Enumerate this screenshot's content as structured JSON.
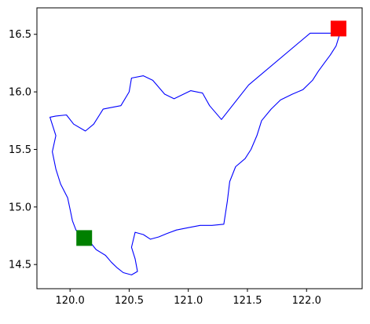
{
  "chart_data": {
    "type": "scatter",
    "title": "",
    "xlabel": "",
    "ylabel": "",
    "xlim": [
      119.72,
      122.47
    ],
    "ylim": [
      14.29,
      16.73
    ],
    "grid": false,
    "legend": null,
    "x_ticks": [
      120.0,
      120.5,
      121.0,
      121.5,
      122.0
    ],
    "x_tick_labels": [
      "120.0",
      "120.5",
      "121.0",
      "121.5",
      "122.0"
    ],
    "y_ticks": [
      14.5,
      15.0,
      15.5,
      16.0,
      16.5
    ],
    "y_tick_labels": [
      "14.5",
      "15.0",
      "15.5",
      "16.0",
      "16.5"
    ],
    "boundary": {
      "stroke": "#0000ff",
      "fill": "none",
      "points": [
        [
          122.28,
          16.6
        ],
        [
          122.23,
          16.51
        ],
        [
          122.03,
          16.51
        ],
        [
          121.51,
          16.06
        ],
        [
          121.28,
          15.76
        ],
        [
          121.18,
          15.88
        ],
        [
          121.12,
          15.99
        ],
        [
          121.02,
          16.01
        ],
        [
          120.88,
          15.94
        ],
        [
          120.8,
          15.98
        ],
        [
          120.7,
          16.1
        ],
        [
          120.62,
          16.14
        ],
        [
          120.52,
          16.12
        ],
        [
          120.5,
          16.0
        ],
        [
          120.43,
          15.88
        ],
        [
          120.33,
          15.86
        ],
        [
          120.28,
          15.85
        ],
        [
          120.2,
          15.72
        ],
        [
          120.13,
          15.66
        ],
        [
          120.03,
          15.72
        ],
        [
          119.97,
          15.8
        ],
        [
          119.88,
          15.79
        ],
        [
          119.83,
          15.78
        ],
        [
          119.88,
          15.62
        ],
        [
          119.85,
          15.48
        ],
        [
          119.88,
          15.33
        ],
        [
          119.92,
          15.2
        ],
        [
          119.98,
          15.08
        ],
        [
          120.0,
          14.98
        ],
        [
          120.02,
          14.88
        ],
        [
          120.05,
          14.8
        ],
        [
          120.09,
          14.76
        ],
        [
          120.15,
          14.72
        ],
        [
          120.22,
          14.63
        ],
        [
          120.3,
          14.58
        ],
        [
          120.35,
          14.52
        ],
        [
          120.4,
          14.47
        ],
        [
          120.45,
          14.43
        ],
        [
          120.52,
          14.41
        ],
        [
          120.57,
          14.44
        ],
        [
          120.55,
          14.55
        ],
        [
          120.52,
          14.65
        ],
        [
          120.55,
          14.78
        ],
        [
          120.62,
          14.76
        ],
        [
          120.68,
          14.72
        ],
        [
          120.75,
          14.74
        ],
        [
          120.82,
          14.77
        ],
        [
          120.9,
          14.8
        ],
        [
          121.0,
          14.82
        ],
        [
          121.1,
          14.84
        ],
        [
          121.2,
          14.84
        ],
        [
          121.3,
          14.85
        ],
        [
          121.33,
          15.05
        ],
        [
          121.35,
          15.22
        ],
        [
          121.4,
          15.35
        ],
        [
          121.48,
          15.42
        ],
        [
          121.53,
          15.5
        ],
        [
          121.58,
          15.62
        ],
        [
          121.62,
          15.75
        ],
        [
          121.7,
          15.85
        ],
        [
          121.78,
          15.93
        ],
        [
          121.88,
          15.98
        ],
        [
          121.97,
          16.02
        ],
        [
          122.05,
          16.1
        ],
        [
          122.1,
          16.18
        ],
        [
          122.15,
          16.25
        ],
        [
          122.2,
          16.32
        ],
        [
          122.25,
          16.4
        ],
        [
          122.28,
          16.5
        ],
        [
          122.28,
          16.6
        ]
      ]
    },
    "series": [
      {
        "marker": "square",
        "color": "#008000",
        "x": [
          120.12
        ],
        "y": [
          14.73
        ]
      },
      {
        "marker": "square",
        "color": "#ff0000",
        "x": [
          122.27
        ],
        "y": [
          16.55
        ]
      }
    ]
  }
}
